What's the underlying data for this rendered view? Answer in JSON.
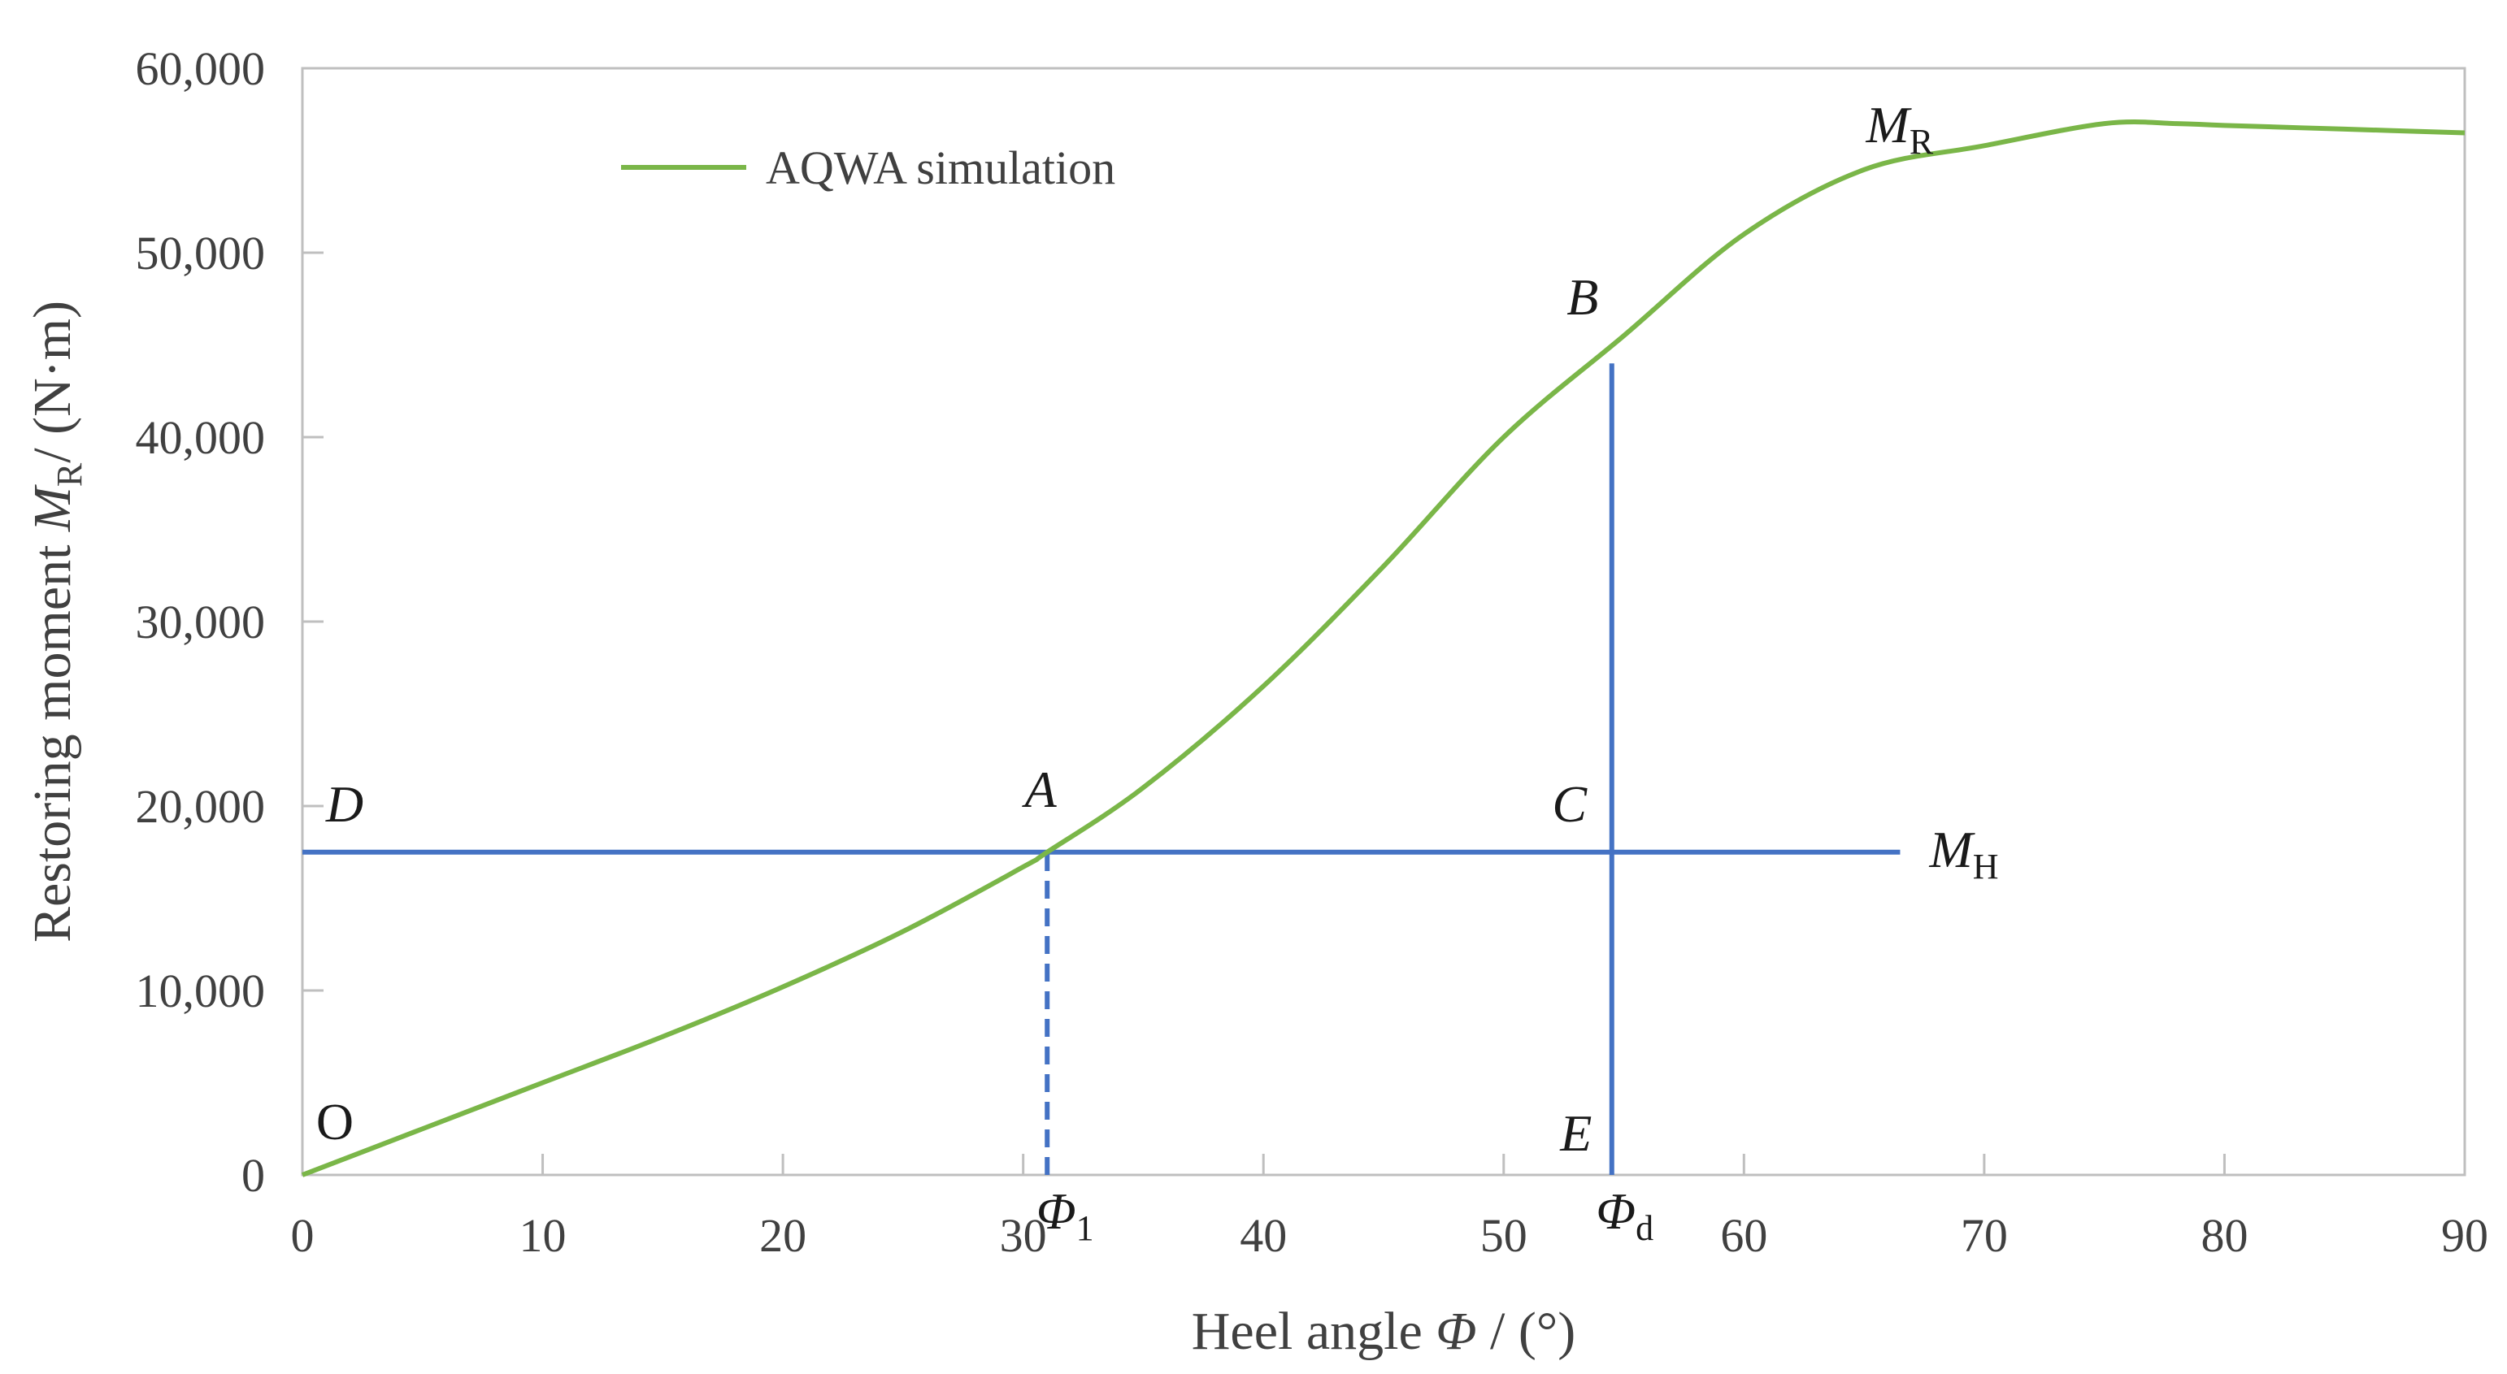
{
  "chart_data": {
    "type": "line",
    "xlabel": "Heel angle Φ / (°)",
    "ylabel": "Restoring moment M_R / (N·m)",
    "xlim": [
      0,
      90
    ],
    "ylim": [
      0,
      60000
    ],
    "x_ticks": [
      "0",
      "10",
      "20",
      "30",
      "40",
      "50",
      "60",
      "70",
      "80",
      "90"
    ],
    "y_ticks": [
      "0",
      "10,000",
      "20,000",
      "30,000",
      "40,000",
      "50,000",
      "60,000"
    ],
    "x_tick_values": [
      0,
      10,
      20,
      30,
      40,
      50,
      60,
      70,
      80,
      90
    ],
    "y_tick_values": [
      0,
      10000,
      20000,
      30000,
      40000,
      50000,
      60000
    ],
    "grid": false,
    "legend_position": "top-left",
    "series": [
      {
        "name": "AQWA simulation",
        "color": "#7ab648",
        "x": [
          0,
          5,
          10,
          15,
          20,
          25,
          30,
          31,
          35,
          40,
          45,
          50,
          55,
          60,
          65,
          70,
          75,
          78,
          80,
          85,
          90
        ],
        "y": [
          0,
          2500,
          5000,
          7500,
          10200,
          13200,
          16700,
          17500,
          21000,
          26500,
          33000,
          40000,
          45500,
          51000,
          54500,
          55800,
          57000,
          57000,
          56900,
          56700,
          56500
        ]
      }
    ],
    "reference_lines": [
      {
        "name": "M_H",
        "color": "#4472c4",
        "type": "horizontal",
        "y": 17500,
        "x_range": [
          0,
          66.5
        ]
      },
      {
        "name": "A-Φ1",
        "color": "#4472c4",
        "type": "vertical-dashed",
        "x": 31,
        "y_range": [
          0,
          17500
        ]
      },
      {
        "name": "B-E",
        "color": "#4472c4",
        "type": "vertical",
        "x": 54.5,
        "y_range": [
          0,
          44000
        ]
      }
    ],
    "annotations": [
      {
        "label": "O",
        "x": 0,
        "y": 0,
        "italic": false
      },
      {
        "label": "A",
        "x": 31,
        "y": 17500,
        "italic": true
      },
      {
        "label": "B",
        "x": 54.5,
        "y": 44000,
        "italic": true
      },
      {
        "label": "C",
        "x": 54.5,
        "y": 17500,
        "italic": true
      },
      {
        "label": "D",
        "x": 0,
        "y": 17500,
        "italic": true
      },
      {
        "label": "E",
        "x": 54.5,
        "y": 0,
        "italic": true
      },
      {
        "label": "M",
        "sub": "H",
        "x": 66.5,
        "y": 17500,
        "italic": true
      },
      {
        "label": "M",
        "sub": "R",
        "x": 64,
        "y": 56000,
        "italic": true
      },
      {
        "label": "Φ",
        "sub": "1",
        "x": 31,
        "y": 0,
        "italic": true
      },
      {
        "label": "Φ",
        "sub": "d",
        "x": 54.5,
        "y": 0,
        "italic": true
      }
    ]
  }
}
